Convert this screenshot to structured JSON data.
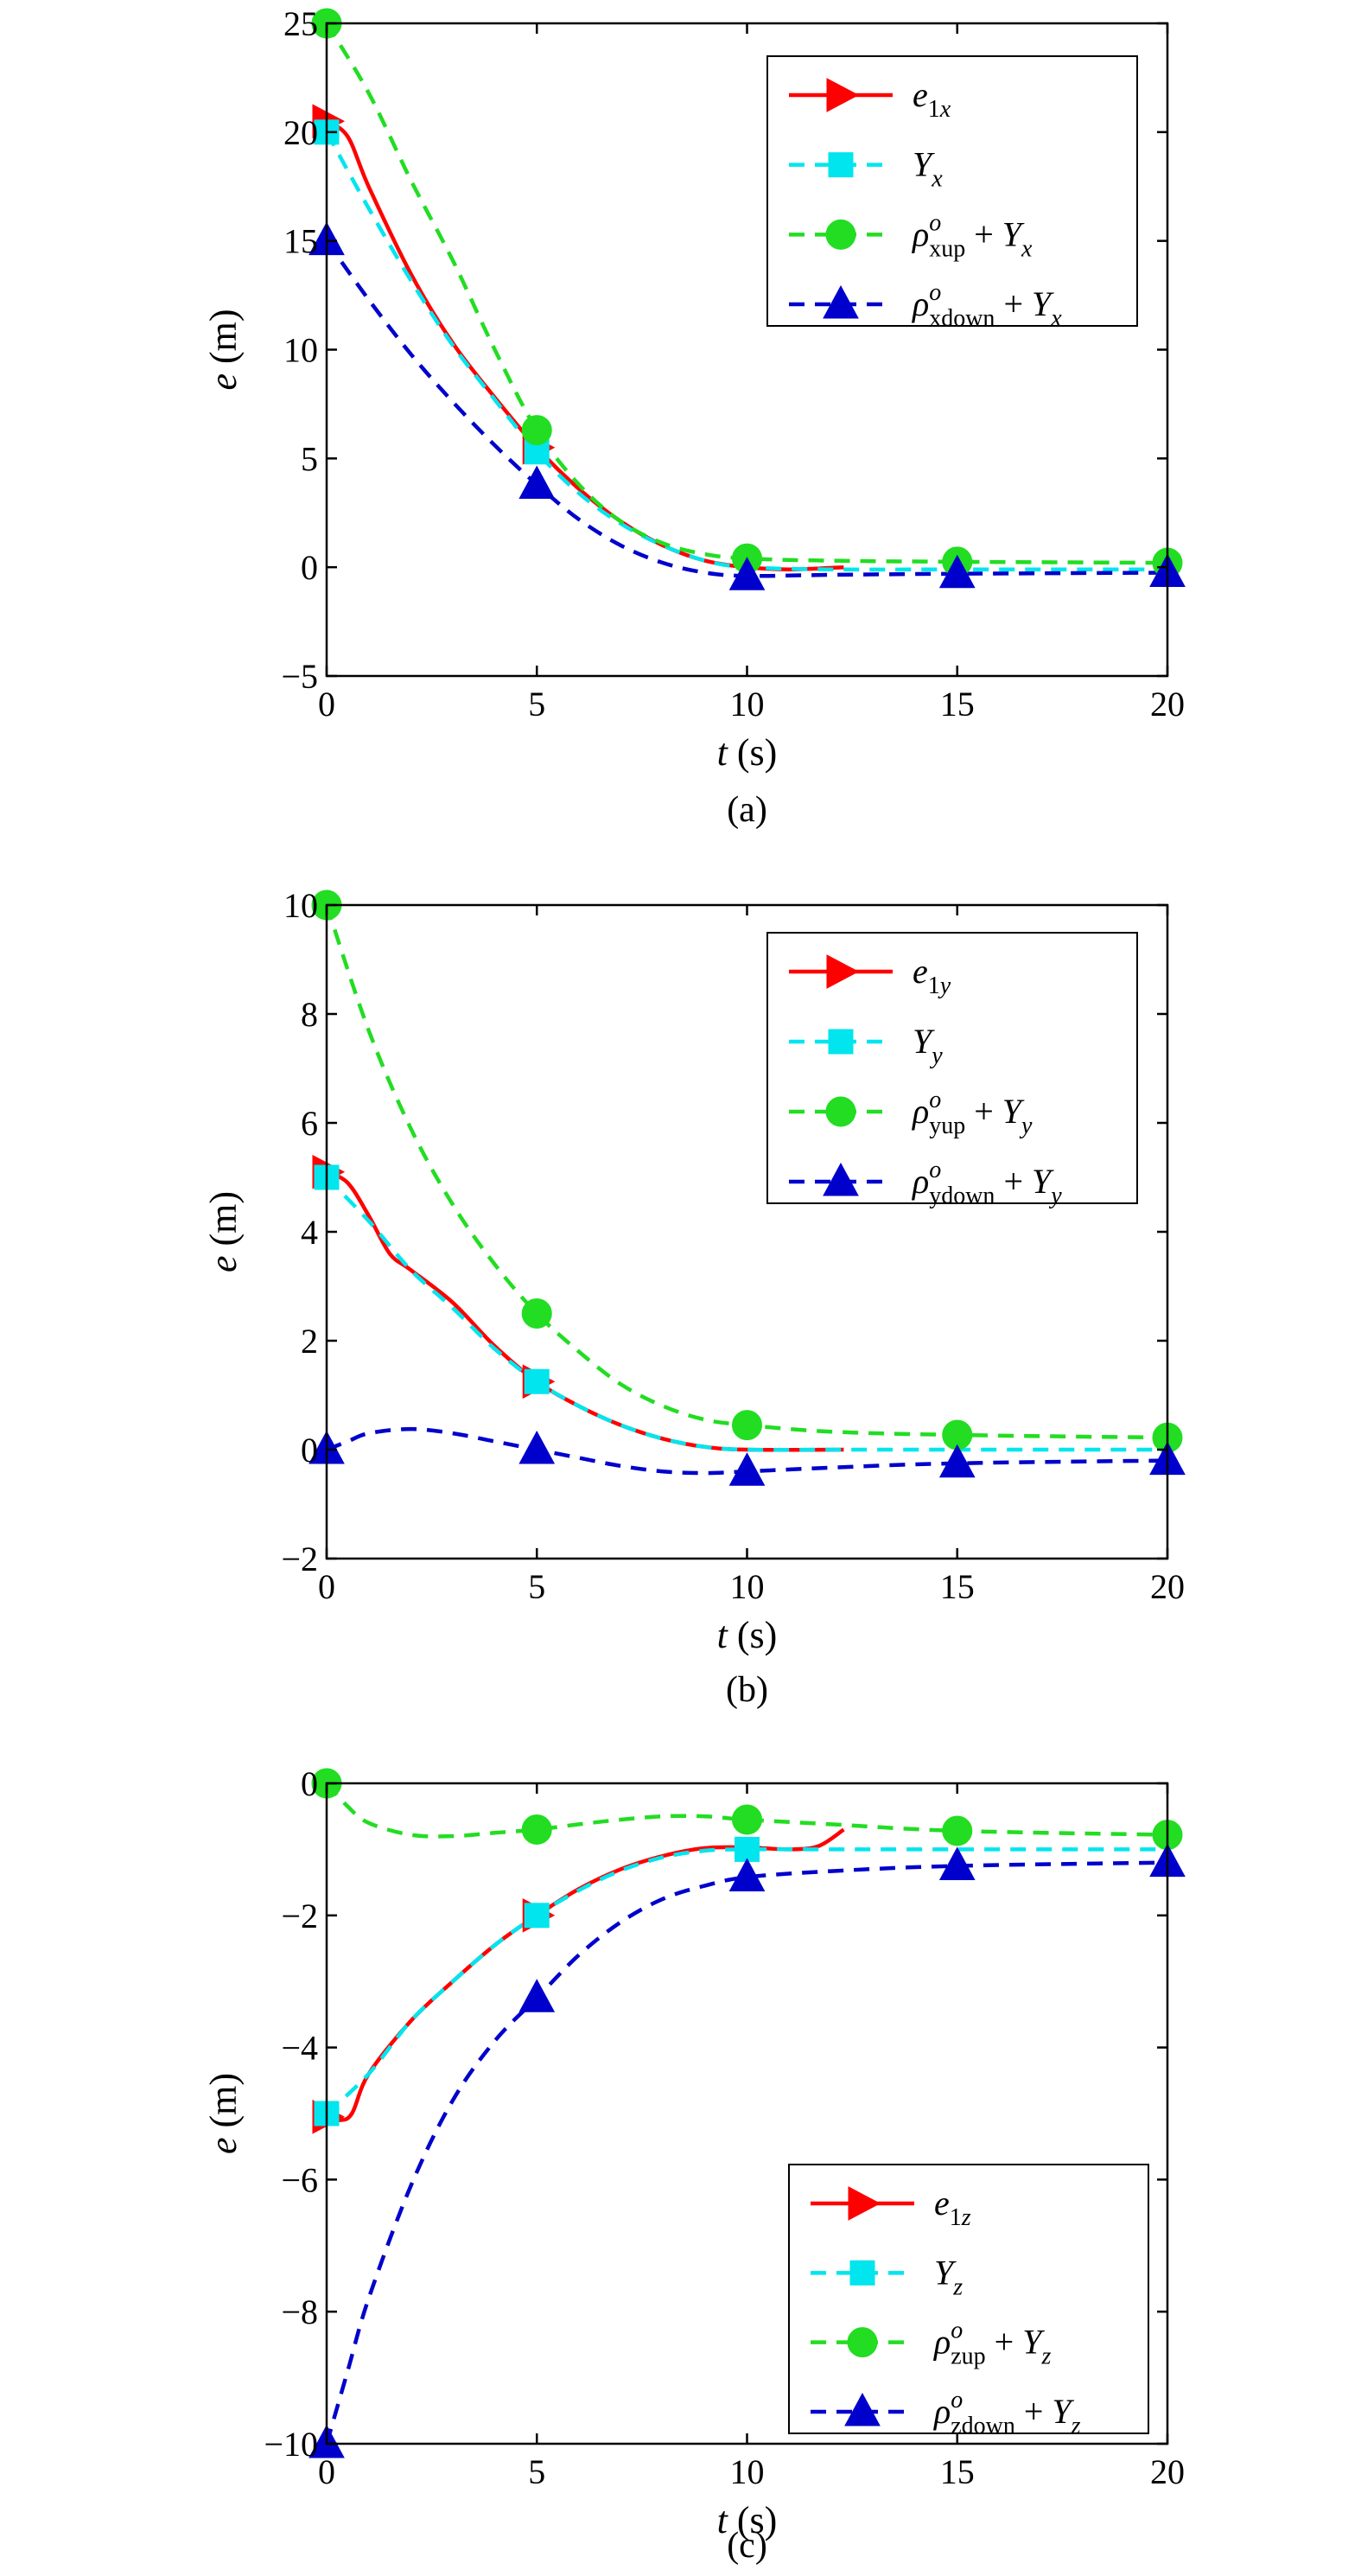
{
  "chart_data": [
    {
      "type": "line",
      "caption": "(a)",
      "xlabel": {
        "var": "t",
        "unit": "(s)"
      },
      "ylabel": {
        "var": "e",
        "unit": "(m)"
      },
      "xlim": [
        0,
        20
      ],
      "ylim": [
        -5,
        25
      ],
      "xticks": [
        0,
        5,
        10,
        15,
        20
      ],
      "yticks": [
        -5,
        0,
        5,
        10,
        15,
        20,
        25
      ],
      "ytick_labels": [
        "−5",
        "0",
        "5",
        "10",
        "15",
        "20",
        "25"
      ],
      "legend_position": "top-right",
      "series": [
        {
          "legend": {
            "base": "e",
            "sub": "1x",
            "sup": "",
            "suffix": "",
            "suffixSub": ""
          },
          "color": "#ff0000",
          "style": "solid",
          "marker": "triangle-right",
          "points": [
            [
              0,
              20.5
            ],
            [
              0.5,
              19.8
            ],
            [
              1,
              17.5
            ],
            [
              2,
              13.5
            ],
            [
              3,
              10.3
            ],
            [
              4,
              7.8
            ],
            [
              5,
              5.5
            ],
            [
              6,
              3.6
            ],
            [
              7,
              2.1
            ],
            [
              8,
              1.0
            ],
            [
              9,
              0.3
            ],
            [
              10,
              0.0
            ],
            [
              11,
              -0.1
            ],
            [
              12.3,
              0.0
            ]
          ],
          "marker_x": [
            0,
            5
          ]
        },
        {
          "legend": {
            "base": "Y",
            "sub": "x",
            "sup": "",
            "suffix": "",
            "suffixSub": ""
          },
          "color": "#00e5ee",
          "style": "dashed",
          "marker": "square",
          "points": [
            [
              0,
              20
            ],
            [
              1,
              16.5
            ],
            [
              2,
              13.2
            ],
            [
              3,
              10.2
            ],
            [
              4,
              7.7
            ],
            [
              5,
              5.3
            ],
            [
              6,
              3.4
            ],
            [
              7,
              2.0
            ],
            [
              8,
              1.0
            ],
            [
              9,
              0.3
            ],
            [
              10,
              0.0
            ],
            [
              12,
              -0.1
            ],
            [
              15,
              -0.1
            ],
            [
              20,
              -0.1
            ]
          ],
          "marker_x": [
            0,
            5
          ]
        },
        {
          "legend": {
            "base": "ρ",
            "sub": "xup",
            "sup": "o",
            "suffix": " + Y",
            "suffixSub": "x"
          },
          "color": "#22dd22",
          "style": "dashed",
          "marker": "circle",
          "points": [
            [
              0,
              25
            ],
            [
              1,
              21.8
            ],
            [
              2,
              17.8
            ],
            [
              3,
              14.1
            ],
            [
              4,
              10.0
            ],
            [
              5,
              6.3
            ],
            [
              6,
              3.8
            ],
            [
              7,
              2.1
            ],
            [
              8,
              1.1
            ],
            [
              9,
              0.6
            ],
            [
              10,
              0.4
            ],
            [
              12,
              0.3
            ],
            [
              15,
              0.25
            ],
            [
              20,
              0.2
            ]
          ],
          "marker_x": [
            0,
            5,
            10,
            15,
            20
          ]
        },
        {
          "legend": {
            "base": "ρ",
            "sub": "xdown",
            "sup": "o",
            "suffix": " + Y",
            "suffixSub": "x"
          },
          "color": "#0000cc",
          "style": "dashed",
          "marker": "triangle-up",
          "points": [
            [
              0,
              15
            ],
            [
              1,
              12.3
            ],
            [
              2,
              9.8
            ],
            [
              3,
              7.6
            ],
            [
              4,
              5.6
            ],
            [
              5,
              3.8
            ],
            [
              6,
              2.2
            ],
            [
              7,
              1.0
            ],
            [
              8,
              0.2
            ],
            [
              9,
              -0.25
            ],
            [
              10,
              -0.4
            ],
            [
              12,
              -0.35
            ],
            [
              15,
              -0.3
            ],
            [
              20,
              -0.25
            ]
          ],
          "marker_x": [
            0,
            5,
            10,
            15,
            20
          ]
        }
      ]
    },
    {
      "type": "line",
      "caption": "(b)",
      "xlabel": {
        "var": "t",
        "unit": "(s)"
      },
      "ylabel": {
        "var": "e",
        "unit": "(m)"
      },
      "xlim": [
        0,
        20
      ],
      "ylim": [
        -2,
        10
      ],
      "xticks": [
        0,
        5,
        10,
        15,
        20
      ],
      "yticks": [
        -2,
        0,
        2,
        4,
        6,
        8,
        10
      ],
      "ytick_labels": [
        "−2",
        "0",
        "2",
        "4",
        "6",
        "8",
        "10"
      ],
      "legend_position": "top-right",
      "series": [
        {
          "legend": {
            "base": "e",
            "sub": "1y",
            "sup": "",
            "suffix": "",
            "suffixSub": ""
          },
          "color": "#ff0000",
          "style": "solid",
          "marker": "triangle-right",
          "points": [
            [
              0,
              5.1
            ],
            [
              0.5,
              4.9
            ],
            [
              1,
              4.3
            ],
            [
              1.5,
              3.6
            ],
            [
              2,
              3.3
            ],
            [
              3,
              2.7
            ],
            [
              4,
              1.9
            ],
            [
              5,
              1.25
            ],
            [
              6,
              0.8
            ],
            [
              7,
              0.45
            ],
            [
              8,
              0.2
            ],
            [
              9,
              0.05
            ],
            [
              10,
              0.0
            ],
            [
              12.3,
              0.0
            ]
          ],
          "marker_x": [
            0,
            5
          ]
        },
        {
          "legend": {
            "base": "Y",
            "sub": "y",
            "sup": "",
            "suffix": "",
            "suffixSub": ""
          },
          "color": "#00e5ee",
          "style": "dashed",
          "marker": "square",
          "points": [
            [
              0,
              5.0
            ],
            [
              1,
              4.2
            ],
            [
              2,
              3.3
            ],
            [
              3,
              2.6
            ],
            [
              4,
              1.85
            ],
            [
              5,
              1.25
            ],
            [
              6,
              0.8
            ],
            [
              7,
              0.45
            ],
            [
              8,
              0.2
            ],
            [
              9,
              0.05
            ],
            [
              10,
              0.0
            ],
            [
              12,
              0.0
            ],
            [
              15,
              0.0
            ],
            [
              20,
              0.0
            ]
          ],
          "marker_x": [
            0,
            5
          ]
        },
        {
          "legend": {
            "base": "ρ",
            "sub": "yup",
            "sup": "o",
            "suffix": " + Y",
            "suffixSub": "y"
          },
          "color": "#22dd22",
          "style": "dashed",
          "marker": "circle",
          "points": [
            [
              0,
              10
            ],
            [
              1,
              7.7
            ],
            [
              2,
              5.9
            ],
            [
              3,
              4.5
            ],
            [
              4,
              3.4
            ],
            [
              5,
              2.5
            ],
            [
              6,
              1.8
            ],
            [
              7,
              1.2
            ],
            [
              8,
              0.8
            ],
            [
              9,
              0.55
            ],
            [
              10,
              0.45
            ],
            [
              12,
              0.33
            ],
            [
              15,
              0.27
            ],
            [
              20,
              0.22
            ]
          ],
          "marker_x": [
            0,
            5,
            10,
            15,
            20
          ]
        },
        {
          "legend": {
            "base": "ρ",
            "sub": "ydown",
            "sup": "o",
            "suffix": " + Y",
            "suffixSub": "y"
          },
          "color": "#0000cc",
          "style": "dashed",
          "marker": "triangle-up",
          "points": [
            [
              0,
              0
            ],
            [
              0.5,
              0.15
            ],
            [
              1,
              0.3
            ],
            [
              2,
              0.38
            ],
            [
              3,
              0.3
            ],
            [
              4,
              0.15
            ],
            [
              5,
              0.0
            ],
            [
              6,
              -0.15
            ],
            [
              7,
              -0.3
            ],
            [
              8,
              -0.4
            ],
            [
              9,
              -0.43
            ],
            [
              10,
              -0.4
            ],
            [
              12,
              -0.33
            ],
            [
              15,
              -0.25
            ],
            [
              20,
              -0.2
            ]
          ],
          "marker_x": [
            0,
            5,
            10,
            15,
            20
          ]
        }
      ]
    },
    {
      "type": "line",
      "caption": "(c)",
      "xlabel": {
        "var": "t",
        "unit": "(s)"
      },
      "ylabel": {
        "var": "e",
        "unit": "(m)"
      },
      "xlim": [
        0,
        20
      ],
      "ylim": [
        -10,
        0
      ],
      "xticks": [
        0,
        5,
        10,
        15,
        20
      ],
      "yticks": [
        -10,
        -8,
        -6,
        -4,
        -2,
        0
      ],
      "ytick_labels": [
        "−10",
        "−8",
        "−6",
        "−4",
        "−2",
        "0"
      ],
      "legend_position": "bottom-right",
      "series": [
        {
          "legend": {
            "base": "e",
            "sub": "1z",
            "sup": "",
            "suffix": "",
            "suffixSub": ""
          },
          "color": "#ff0000",
          "style": "solid",
          "marker": "triangle-right",
          "points": [
            [
              0,
              -5.05
            ],
            [
              0.3,
              -5.1
            ],
            [
              0.6,
              -5.0
            ],
            [
              1,
              -4.4
            ],
            [
              2,
              -3.6
            ],
            [
              3,
              -3.0
            ],
            [
              4,
              -2.45
            ],
            [
              5,
              -2.0
            ],
            [
              6,
              -1.6
            ],
            [
              7,
              -1.3
            ],
            [
              8,
              -1.1
            ],
            [
              9,
              -0.98
            ],
            [
              10,
              -0.97
            ],
            [
              11,
              -1.0
            ],
            [
              11.7,
              -0.95
            ],
            [
              12.3,
              -0.7
            ]
          ],
          "marker_x": [
            0,
            5
          ]
        },
        {
          "legend": {
            "base": "Y",
            "sub": "z",
            "sup": "",
            "suffix": "",
            "suffixSub": ""
          },
          "color": "#00e5ee",
          "style": "dashed",
          "marker": "square",
          "points": [
            [
              0,
              -5
            ],
            [
              1,
              -4.4
            ],
            [
              2,
              -3.6
            ],
            [
              3,
              -3.0
            ],
            [
              4,
              -2.45
            ],
            [
              5,
              -2.0
            ],
            [
              6,
              -1.62
            ],
            [
              7,
              -1.32
            ],
            [
              8,
              -1.12
            ],
            [
              9,
              -1.02
            ],
            [
              10,
              -1.0
            ],
            [
              12,
              -1.0
            ],
            [
              15,
              -1.0
            ],
            [
              20,
              -1.0
            ]
          ],
          "marker_x": [
            0,
            5,
            10
          ]
        },
        {
          "legend": {
            "base": "ρ",
            "sub": "zup",
            "sup": "o",
            "suffix": " + Y",
            "suffixSub": "z"
          },
          "color": "#22dd22",
          "style": "dashed",
          "marker": "circle",
          "points": [
            [
              0,
              0
            ],
            [
              0.5,
              -0.35
            ],
            [
              1,
              -0.6
            ],
            [
              2,
              -0.78
            ],
            [
              3,
              -0.8
            ],
            [
              4,
              -0.75
            ],
            [
              5,
              -0.7
            ],
            [
              6,
              -0.62
            ],
            [
              7,
              -0.55
            ],
            [
              8,
              -0.5
            ],
            [
              9,
              -0.5
            ],
            [
              10,
              -0.55
            ],
            [
              12,
              -0.62
            ],
            [
              15,
              -0.72
            ],
            [
              20,
              -0.78
            ]
          ],
          "marker_x": [
            0,
            5,
            10,
            15,
            20
          ]
        },
        {
          "legend": {
            "base": "ρ",
            "sub": "zdown",
            "sup": "o",
            "suffix": " + Y",
            "suffixSub": "z"
          },
          "color": "#0000cc",
          "style": "dashed",
          "marker": "triangle-up",
          "points": [
            [
              0,
              -10
            ],
            [
              0.5,
              -8.9
            ],
            [
              1,
              -7.8
            ],
            [
              2,
              -6.1
            ],
            [
              3,
              -4.8
            ],
            [
              4,
              -3.9
            ],
            [
              5,
              -3.25
            ],
            [
              6,
              -2.6
            ],
            [
              7,
              -2.1
            ],
            [
              8,
              -1.75
            ],
            [
              9,
              -1.55
            ],
            [
              10,
              -1.42
            ],
            [
              12,
              -1.33
            ],
            [
              15,
              -1.25
            ],
            [
              20,
              -1.2
            ]
          ],
          "marker_x": [
            0,
            5,
            10,
            15,
            20
          ]
        }
      ]
    }
  ]
}
